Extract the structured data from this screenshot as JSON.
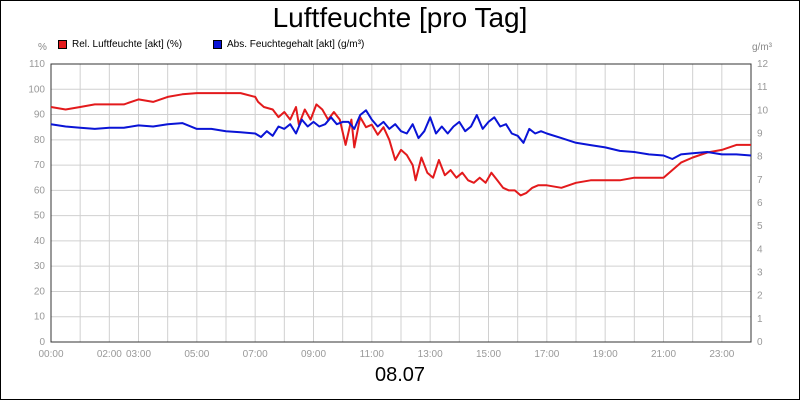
{
  "chart_data": {
    "type": "line",
    "title": "Luftfeuchte [pro Tag]",
    "date_label": "08.07",
    "y_left_unit": "%",
    "y_right_unit": "g/m³",
    "ylim_left": [
      0,
      110
    ],
    "ylim_right": [
      0,
      12
    ],
    "y_left_ticks": [
      "0",
      "10",
      "20",
      "30",
      "40",
      "50",
      "60",
      "70",
      "80",
      "90",
      "100",
      "110"
    ],
    "y_right_ticks": [
      "0",
      "1",
      "2",
      "3",
      "4",
      "5",
      "6",
      "7",
      "8",
      "9",
      "10",
      "11",
      "12"
    ],
    "x_ticks": [
      {
        "label": "00:00",
        "t": 0
      },
      {
        "label": "02:00",
        "t": 2
      },
      {
        "label": "03:00",
        "t": 3
      },
      {
        "label": "05:00",
        "t": 5
      },
      {
        "label": "07:00",
        "t": 7
      },
      {
        "label": "09:00",
        "t": 9
      },
      {
        "label": "11:00",
        "t": 11
      },
      {
        "label": "13:00",
        "t": 13
      },
      {
        "label": "15:00",
        "t": 15
      },
      {
        "label": "17:00",
        "t": 17
      },
      {
        "label": "19:00",
        "t": 19
      },
      {
        "label": "21:00",
        "t": 21
      },
      {
        "label": "23:00",
        "t": 23
      }
    ],
    "grid": true,
    "series": [
      {
        "name": "Rel. Luftfeuchte [akt] (%)",
        "axis": "left",
        "color": "#e31a1c",
        "points": [
          [
            0,
            93
          ],
          [
            0.5,
            92
          ],
          [
            1,
            93
          ],
          [
            1.5,
            94
          ],
          [
            2,
            94
          ],
          [
            2.5,
            94
          ],
          [
            3,
            96
          ],
          [
            3.5,
            95
          ],
          [
            4,
            97
          ],
          [
            4.5,
            98
          ],
          [
            5,
            98.5
          ],
          [
            5.5,
            98.5
          ],
          [
            6,
            98.5
          ],
          [
            6.5,
            98.5
          ],
          [
            7,
            97
          ],
          [
            7.1,
            95
          ],
          [
            7.3,
            93
          ],
          [
            7.6,
            92
          ],
          [
            7.8,
            89
          ],
          [
            8,
            91
          ],
          [
            8.2,
            88
          ],
          [
            8.4,
            93
          ],
          [
            8.5,
            86
          ],
          [
            8.7,
            92
          ],
          [
            8.9,
            88
          ],
          [
            9.1,
            94
          ],
          [
            9.3,
            92
          ],
          [
            9.5,
            88
          ],
          [
            9.7,
            91
          ],
          [
            9.9,
            88
          ],
          [
            10.1,
            78
          ],
          [
            10.3,
            88
          ],
          [
            10.4,
            77
          ],
          [
            10.6,
            89
          ],
          [
            10.8,
            85
          ],
          [
            11,
            86
          ],
          [
            11.2,
            82
          ],
          [
            11.4,
            85
          ],
          [
            11.6,
            80
          ],
          [
            11.8,
            72
          ],
          [
            12,
            76
          ],
          [
            12.2,
            74
          ],
          [
            12.4,
            70
          ],
          [
            12.5,
            64
          ],
          [
            12.7,
            73
          ],
          [
            12.9,
            67
          ],
          [
            13.1,
            65
          ],
          [
            13.3,
            72
          ],
          [
            13.5,
            66
          ],
          [
            13.7,
            68
          ],
          [
            13.9,
            65
          ],
          [
            14.1,
            67
          ],
          [
            14.3,
            64
          ],
          [
            14.5,
            63
          ],
          [
            14.7,
            65
          ],
          [
            14.9,
            63
          ],
          [
            15.1,
            67
          ],
          [
            15.3,
            64
          ],
          [
            15.5,
            61
          ],
          [
            15.7,
            60
          ],
          [
            15.9,
            60
          ],
          [
            16.1,
            58
          ],
          [
            16.3,
            59
          ],
          [
            16.5,
            61
          ],
          [
            16.7,
            62
          ],
          [
            17,
            62
          ],
          [
            17.5,
            61
          ],
          [
            18,
            63
          ],
          [
            18.5,
            64
          ],
          [
            19,
            64
          ],
          [
            19.5,
            64
          ],
          [
            20,
            65
          ],
          [
            20.5,
            65
          ],
          [
            21,
            65
          ],
          [
            21.3,
            68
          ],
          [
            21.6,
            71
          ],
          [
            22,
            73
          ],
          [
            22.5,
            75
          ],
          [
            23,
            76
          ],
          [
            23.5,
            78
          ],
          [
            24,
            78
          ]
        ]
      },
      {
        "name": "Abs. Feuchtegehalt [akt] (g/m³)",
        "axis": "right",
        "color": "#0a14d6",
        "points": [
          [
            0,
            9.4
          ],
          [
            0.5,
            9.3
          ],
          [
            1,
            9.25
          ],
          [
            1.5,
            9.2
          ],
          [
            2,
            9.25
          ],
          [
            2.5,
            9.25
          ],
          [
            3,
            9.35
          ],
          [
            3.5,
            9.3
          ],
          [
            4,
            9.4
          ],
          [
            4.5,
            9.45
          ],
          [
            5,
            9.2
          ],
          [
            5.5,
            9.2
          ],
          [
            6,
            9.1
          ],
          [
            6.5,
            9.05
          ],
          [
            7,
            9.0
          ],
          [
            7.2,
            8.85
          ],
          [
            7.4,
            9.1
          ],
          [
            7.6,
            8.9
          ],
          [
            7.8,
            9.3
          ],
          [
            8,
            9.2
          ],
          [
            8.2,
            9.4
          ],
          [
            8.4,
            9.0
          ],
          [
            8.6,
            9.6
          ],
          [
            8.8,
            9.3
          ],
          [
            9,
            9.5
          ],
          [
            9.2,
            9.3
          ],
          [
            9.4,
            9.4
          ],
          [
            9.6,
            9.7
          ],
          [
            9.8,
            9.4
          ],
          [
            10,
            9.5
          ],
          [
            10.2,
            9.5
          ],
          [
            10.4,
            9.2
          ],
          [
            10.6,
            9.8
          ],
          [
            10.8,
            10.0
          ],
          [
            11,
            9.6
          ],
          [
            11.2,
            9.3
          ],
          [
            11.4,
            9.5
          ],
          [
            11.6,
            9.2
          ],
          [
            11.8,
            9.4
          ],
          [
            12,
            9.1
          ],
          [
            12.2,
            9.0
          ],
          [
            12.4,
            9.4
          ],
          [
            12.6,
            8.8
          ],
          [
            12.8,
            9.1
          ],
          [
            13,
            9.7
          ],
          [
            13.2,
            9.0
          ],
          [
            13.4,
            9.3
          ],
          [
            13.6,
            9.0
          ],
          [
            13.8,
            9.3
          ],
          [
            14,
            9.5
          ],
          [
            14.2,
            9.1
          ],
          [
            14.4,
            9.3
          ],
          [
            14.6,
            9.8
          ],
          [
            14.8,
            9.2
          ],
          [
            15,
            9.5
          ],
          [
            15.2,
            9.7
          ],
          [
            15.4,
            9.3
          ],
          [
            15.6,
            9.4
          ],
          [
            15.8,
            9.0
          ],
          [
            16,
            8.9
          ],
          [
            16.2,
            8.6
          ],
          [
            16.4,
            9.2
          ],
          [
            16.6,
            9.0
          ],
          [
            16.8,
            9.1
          ],
          [
            17,
            9.0
          ],
          [
            17.5,
            8.8
          ],
          [
            18,
            8.6
          ],
          [
            18.5,
            8.5
          ],
          [
            19,
            8.4
          ],
          [
            19.5,
            8.25
          ],
          [
            20,
            8.2
          ],
          [
            20.5,
            8.1
          ],
          [
            21,
            8.05
          ],
          [
            21.3,
            7.9
          ],
          [
            21.6,
            8.1
          ],
          [
            22,
            8.15
          ],
          [
            22.5,
            8.2
          ],
          [
            23,
            8.1
          ],
          [
            23.5,
            8.1
          ],
          [
            24,
            8.05
          ]
        ]
      }
    ]
  }
}
